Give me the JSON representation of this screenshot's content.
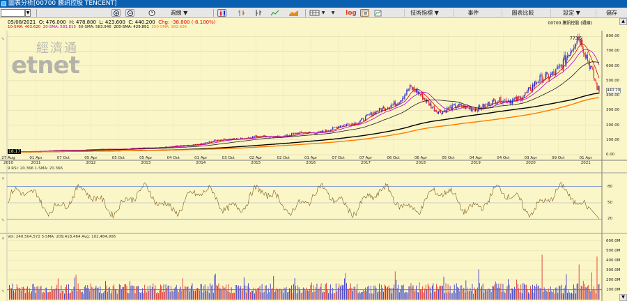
{
  "window": {
    "title": "圖表分析[00700 騰訊控股 TENCENT]"
  },
  "toolbar": {
    "code_value": "",
    "period_label": "週線",
    "log_label": "log",
    "menus": [
      "技術指標 ▼",
      "事件",
      "圖表比較",
      "設定 ▼",
      "儲存"
    ]
  },
  "info": {
    "date": "05/08/2021",
    "open": "O: 476.000",
    "high": "H: 478.800",
    "low": "L: 423.600",
    "close": "C: 440.200",
    "chg": "Chg: -38.800 (-8.100%)",
    "stock_label": "00700 騰訊控股 (週線)"
  },
  "ma_legend": [
    {
      "text": "10-SMA: 463.620",
      "color": "#d60000"
    },
    {
      "text": "20-SMA: 583.815",
      "color": "#b000d0"
    },
    {
      "text": "50-SMA: 583.946",
      "color": "#1a1a1a"
    },
    {
      "text": "200-SMA: 429.891",
      "color": "#000000"
    },
    {
      "text": "250-SMA: 382.606",
      "color": "#ff7a00"
    }
  ],
  "watermark": {
    "chinese": "經濟通",
    "english": "etnet"
  },
  "price_axis": {
    "ticks": [
      "800.00",
      "700.00",
      "600.00",
      "500.00",
      "440.20",
      "400.00",
      "300.00",
      "200.00",
      "100.00",
      "0.00"
    ]
  },
  "annotations": {
    "high": "773.5",
    "low": "18.17"
  },
  "x_axis": {
    "dates": [
      "27 Aug",
      "01 Apr",
      "07 Oct",
      "05 Apr",
      "05 Oct",
      "05 Apr",
      "04 Oct",
      "01 Apr",
      "03 Oct",
      "02 Apr",
      "02 Oct",
      "01 Apr",
      "07 Oct",
      "07 Apr",
      "06 Oct",
      "06 Apr",
      "05 Oct",
      "04 Apr",
      "04 Oct",
      "03 Apr",
      "09 Oct",
      "01 Apr"
    ],
    "years": [
      "2010",
      "2011",
      "2012",
      "2013",
      "2014",
      "2015",
      "2016",
      "2017",
      "2018",
      "2019",
      "2020",
      "2021"
    ]
  },
  "rsi": {
    "label": "9 RSI: 20.366   1-SMA: 20.366",
    "ticks": [
      "80",
      "50",
      "20"
    ]
  },
  "volume": {
    "label": "Vol: 240,504,572   5-SMA: 209,418,464   Avg: 102,484,906",
    "ticks": [
      "600.0M",
      "500.0M",
      "400.0M",
      "300.0M",
      "200.0M",
      "100.0M"
    ]
  },
  "colors": {
    "background": "#fbf6c7",
    "up": "#2222cc",
    "down": "#dd2222",
    "title_bar": "#0b5fb0"
  }
}
